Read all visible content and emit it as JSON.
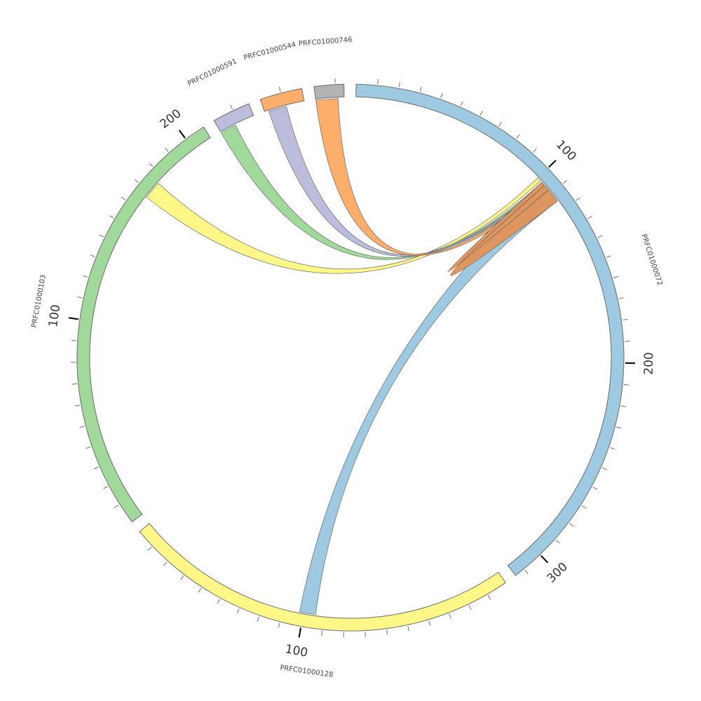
{
  "diagram": {
    "type": "chord",
    "tick_interval": 10,
    "major_tick_interval": 100,
    "segments": [
      {
        "id": "s72",
        "label": "PRFC01000072",
        "length": 315,
        "color": "#9ecae1"
      },
      {
        "id": "s128",
        "label": "PRFC01000128",
        "length": 189,
        "color": "#fff788"
      },
      {
        "id": "s103",
        "label": "PRFC01000103",
        "length": 210,
        "color": "#a1d99b"
      },
      {
        "id": "s591",
        "label": "PRFC01000591",
        "length": 18,
        "color": "#bcbddc"
      },
      {
        "id": "s544",
        "label": "PRFC01000544",
        "length": 20,
        "color": "#fdae6b"
      },
      {
        "id": "s746",
        "label": "PRFC01000746",
        "length": 14,
        "color": "#b3b3b3"
      }
    ],
    "links": [
      {
        "source": "s72",
        "source_range": [
          106,
          115
        ],
        "target": "s128",
        "target_range": [
          94,
          102
        ],
        "color": "#9ecae1"
      },
      {
        "source": "s72",
        "source_range": [
          100,
          102
        ],
        "target": "s103",
        "target_range": [
          167,
          176
        ],
        "color": "#fff788"
      },
      {
        "source": "s72",
        "source_range": [
          103,
          104
        ],
        "target": "s591",
        "target_range": [
          0,
          8
        ],
        "color": "#a1d99b"
      },
      {
        "source": "s72",
        "source_range": [
          104,
          105
        ],
        "target": "s544",
        "target_range": [
          2,
          11
        ],
        "color": "#bcbddc"
      },
      {
        "source": "s72",
        "source_range": [
          105,
          107
        ],
        "target": "s746",
        "target_range": [
          0,
          11
        ],
        "color": "#fdae6b"
      },
      {
        "source": "s72",
        "source_range": [
          103,
          115
        ],
        "target": "s72",
        "target_range": [
          105,
          108
        ],
        "color": "#dd9660"
      }
    ]
  }
}
